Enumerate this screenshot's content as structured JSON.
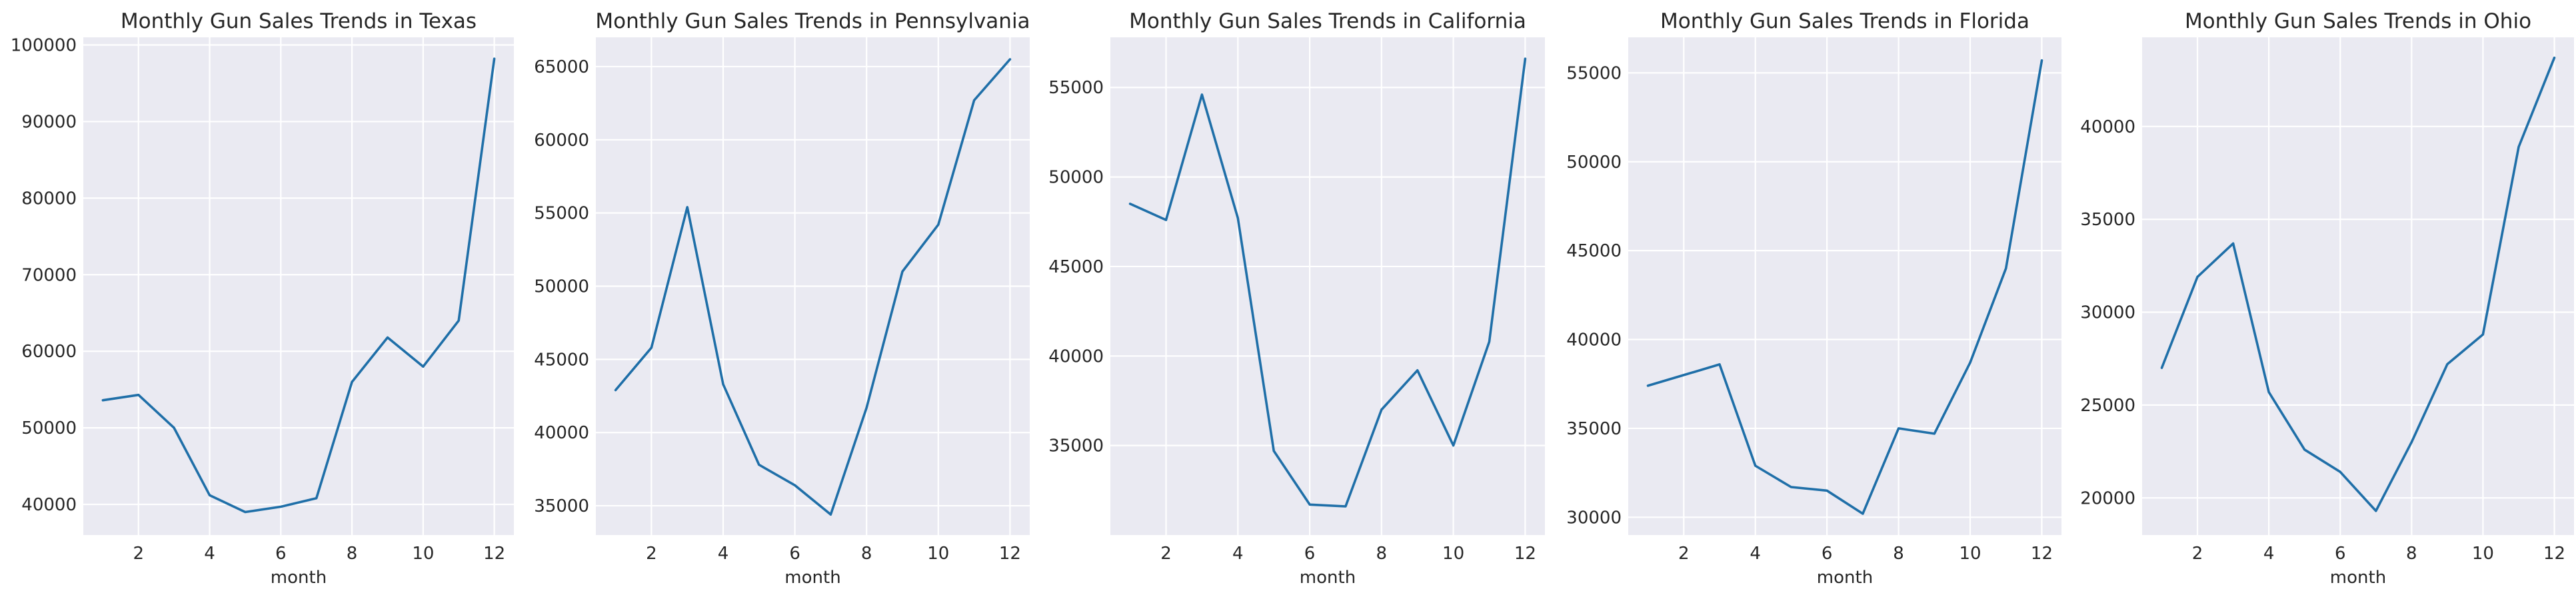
{
  "colors": {
    "line": "#1f6fa8",
    "background": "#eaeaf2",
    "grid": "#ffffff"
  },
  "chart_data": [
    {
      "type": "line",
      "title": "Monthly Gun Sales Trends in Texas",
      "xlabel": "month",
      "ylabel": "",
      "grid": true,
      "x": [
        1,
        2,
        3,
        4,
        5,
        6,
        7,
        8,
        9,
        10,
        11,
        12
      ],
      "xticks": [
        2,
        4,
        6,
        8,
        10,
        12
      ],
      "xlim": [
        0.45,
        12.55
      ],
      "yticks": [
        40000,
        50000,
        60000,
        70000,
        80000,
        90000,
        100000
      ],
      "ylim": [
        36000,
        101000
      ],
      "series": [
        {
          "values": [
            53600,
            54300,
            50000,
            41200,
            39000,
            39700,
            40800,
            56000,
            61800,
            58000,
            64000,
            98200
          ]
        }
      ]
    },
    {
      "type": "line",
      "title": "Monthly Gun Sales Trends in Pennsylvania",
      "xlabel": "month",
      "ylabel": "",
      "grid": true,
      "x": [
        1,
        2,
        3,
        4,
        5,
        6,
        7,
        8,
        9,
        10,
        11,
        12
      ],
      "xticks": [
        2,
        4,
        6,
        8,
        10,
        12
      ],
      "xlim": [
        0.45,
        12.55
      ],
      "yticks": [
        35000,
        40000,
        45000,
        50000,
        55000,
        60000,
        65000
      ],
      "ylim": [
        33000,
        67000
      ],
      "series": [
        {
          "values": [
            42900,
            45800,
            55400,
            43300,
            37800,
            36400,
            34400,
            41700,
            51000,
            54200,
            62700,
            65500
          ]
        }
      ]
    },
    {
      "type": "line",
      "title": "Monthly Gun Sales Trends in California",
      "xlabel": "month",
      "ylabel": "",
      "grid": true,
      "x": [
        1,
        2,
        3,
        4,
        5,
        6,
        7,
        8,
        9,
        10,
        11,
        12
      ],
      "xticks": [
        2,
        4,
        6,
        8,
        10,
        12
      ],
      "xlim": [
        0.45,
        12.55
      ],
      "yticks": [
        35000,
        40000,
        45000,
        50000,
        55000
      ],
      "ylim": [
        30000,
        57800
      ],
      "series": [
        {
          "values": [
            48500,
            47600,
            54600,
            47700,
            34700,
            31700,
            31600,
            37000,
            39200,
            35000,
            40800,
            56600
          ]
        }
      ]
    },
    {
      "type": "line",
      "title": "Monthly Gun Sales Trends in Florida",
      "xlabel": "month",
      "ylabel": "",
      "grid": true,
      "x": [
        1,
        2,
        3,
        4,
        5,
        6,
        7,
        8,
        9,
        10,
        11,
        12
      ],
      "xticks": [
        2,
        4,
        6,
        8,
        10,
        12
      ],
      "xlim": [
        0.45,
        12.55
      ],
      "yticks": [
        30000,
        35000,
        40000,
        45000,
        50000,
        55000
      ],
      "ylim": [
        29000,
        57000
      ],
      "series": [
        {
          "values": [
            37400,
            38000,
            38600,
            32900,
            31700,
            31500,
            30200,
            35000,
            34700,
            38700,
            44000,
            55700
          ]
        }
      ]
    },
    {
      "type": "line",
      "title": "Monthly Gun Sales Trends in Ohio",
      "xlabel": "month",
      "ylabel": "",
      "grid": true,
      "x": [
        1,
        2,
        3,
        4,
        5,
        6,
        7,
        8,
        9,
        10,
        11,
        12
      ],
      "xticks": [
        2,
        4,
        6,
        8,
        10,
        12
      ],
      "xlim": [
        0.45,
        12.55
      ],
      "yticks": [
        20000,
        25000,
        30000,
        35000,
        40000
      ],
      "ylim": [
        18000,
        44800
      ],
      "series": [
        {
          "values": [
            27000,
            31900,
            33700,
            25700,
            22600,
            21400,
            19300,
            23000,
            27200,
            28800,
            38900,
            43700
          ]
        }
      ]
    }
  ]
}
